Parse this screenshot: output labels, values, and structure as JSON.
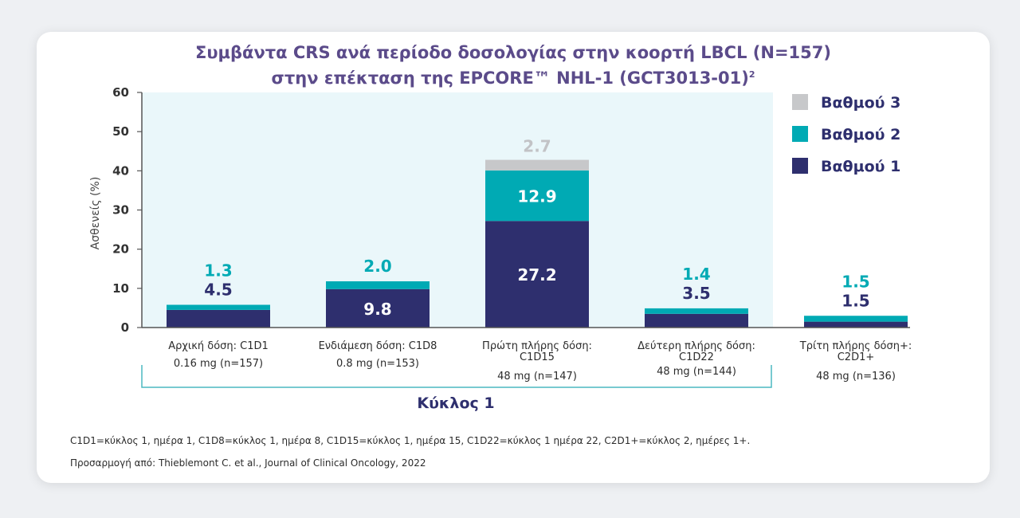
{
  "title_line1": "Συμβάντα CRS ανά περίοδο δοσολογίας στην κοορτή LBCL (N=157)",
  "title_line2": "στην επέκταση της EPCORE™ NHL-1 (GCT3013-01)",
  "title_sup": "2",
  "cycle_label": "Κύκλος 1",
  "footnote1": "C1D1=κύκλος 1, ημέρα 1, C1D8=κύκλος 1, ημέρα 8, C1D15=κύκλος 1, ημέρα 15, C1D22=κύκλος 1 ημέρα 22, C2D1+=κύκλος 2, ημέρες 1+.",
  "footnote2": "Προσαρμογή από: Thieblemont C. et al., Journal of Clinical Oncology, 2022",
  "colors": {
    "grade1": "#2e2f6e",
    "grade2": "#00aab4",
    "grade3": "#c7c8ca",
    "plot_bg": "#eaf7fa",
    "bracket": "#4bb8c0"
  },
  "chart_data": {
    "type": "bar",
    "stacked": true,
    "ylabel": "Ασθενείς (%)",
    "ylim": [
      0,
      60
    ],
    "yticks": [
      0,
      10,
      20,
      30,
      40,
      50,
      60
    ],
    "categories": [
      [
        "Αρχική δόση: C1D1",
        "0.16 mg (n=157)"
      ],
      [
        "Ενδιάμεση δόση: C1D8",
        "0.8 mg (n=153)"
      ],
      [
        "Πρώτη πλήρης δόση:",
        "C1D15",
        "48 mg (n=147)"
      ],
      [
        "Δεύτερη πλήρης δόση:",
        "C1D22",
        "48 mg (n=144)"
      ],
      [
        "Τρίτη πλήρης δόση+:",
        "C2D1+",
        "48 mg (n=136)"
      ]
    ],
    "series": [
      {
        "name": "Βαθμού 1",
        "values": [
          4.5,
          9.8,
          27.2,
          3.5,
          1.5
        ]
      },
      {
        "name": "Βαθμού 2",
        "values": [
          1.3,
          2.0,
          12.9,
          1.4,
          1.5
        ]
      },
      {
        "name": "Βαθμού 3",
        "values": [
          0,
          0,
          2.7,
          0,
          0
        ]
      }
    ],
    "legend_order": [
      "Βαθμού 3",
      "Βαθμού 2",
      "Βαθμού 1"
    ],
    "legend_position": "right"
  }
}
